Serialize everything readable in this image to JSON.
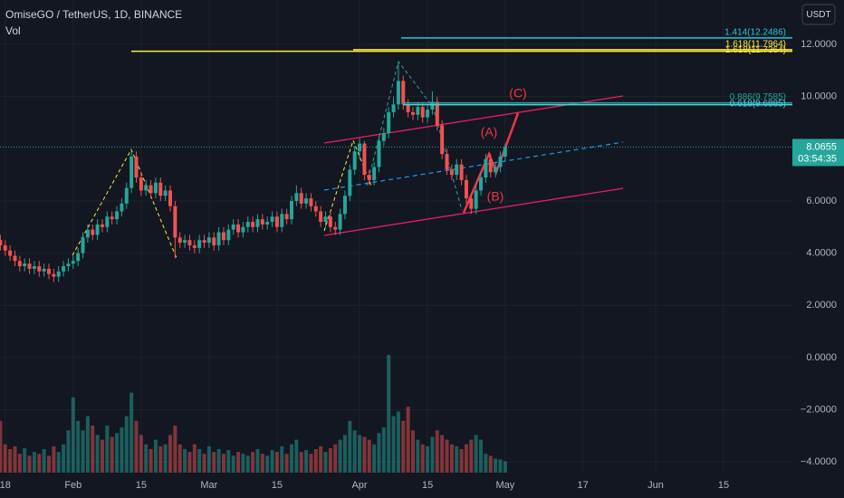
{
  "chart_data": {
    "type": "candlestick",
    "title": "OmiseGO / TetherUS, 1D, BINANCE",
    "volume_label": "Vol",
    "currency": "USDT",
    "countdown": "03:54:35",
    "up_color": "#26a69a",
    "down_color": "#ef5350",
    "x": [
      "01-17",
      "01-18",
      "01-19",
      "01-20",
      "01-21",
      "01-22",
      "01-23",
      "01-24",
      "01-25",
      "01-26",
      "01-27",
      "01-28",
      "01-29",
      "01-30",
      "01-31",
      "02-01",
      "02-02",
      "02-03",
      "02-04",
      "02-05",
      "02-06",
      "02-07",
      "02-08",
      "02-09",
      "02-10",
      "02-11",
      "02-12",
      "02-13",
      "02-14",
      "02-15",
      "02-16",
      "02-17",
      "02-18",
      "02-19",
      "02-20",
      "02-21",
      "02-22",
      "02-23",
      "02-24",
      "02-25",
      "02-26",
      "02-27",
      "02-28",
      "03-01",
      "03-02",
      "03-03",
      "03-04",
      "03-05",
      "03-06",
      "03-07",
      "03-08",
      "03-09",
      "03-10",
      "03-11",
      "03-12",
      "03-13",
      "03-14",
      "03-15",
      "03-16",
      "03-17",
      "03-18",
      "03-19",
      "03-20",
      "03-21",
      "03-22",
      "03-23",
      "03-24",
      "03-25",
      "03-26",
      "03-27",
      "03-28",
      "03-29",
      "03-30",
      "03-31",
      "04-01",
      "04-02",
      "04-03",
      "04-04",
      "04-05",
      "04-06",
      "04-07",
      "04-08",
      "04-09",
      "04-10",
      "04-11",
      "04-12",
      "04-13",
      "04-14",
      "04-15",
      "04-16",
      "04-17",
      "04-18",
      "04-19",
      "04-20",
      "04-21",
      "04-22",
      "04-23",
      "04-24",
      "04-25",
      "04-26",
      "04-27",
      "04-28",
      "04-29",
      "04-30",
      "05-01"
    ],
    "open": [
      4.5,
      4.3,
      4.1,
      3.9,
      3.7,
      3.5,
      3.6,
      3.4,
      3.5,
      3.3,
      3.4,
      3.2,
      3.1,
      3.3,
      3.5,
      3.6,
      3.7,
      4.0,
      4.6,
      4.9,
      4.7,
      5.1,
      5.0,
      5.4,
      5.3,
      5.6,
      5.9,
      6.5,
      7.7,
      6.9,
      6.4,
      6.6,
      6.3,
      6.7,
      6.2,
      6.4,
      5.8,
      4.6,
      4.4,
      4.5,
      4.3,
      4.2,
      4.5,
      4.4,
      4.6,
      4.3,
      4.8,
      4.5,
      4.9,
      5.1,
      4.8,
      5.0,
      5.2,
      5.0,
      5.3,
      5.1,
      5.2,
      5.4,
      5.0,
      5.5,
      5.3,
      6.0,
      6.3,
      5.9,
      6.1,
      5.8,
      5.6,
      5.2,
      5.4,
      5.0,
      4.9,
      5.5,
      6.2,
      7.2,
      7.9,
      8.2,
      7.0,
      6.8,
      7.3,
      8.3,
      8.6,
      9.4,
      9.7,
      10.6,
      9.7,
      9.4,
      9.3,
      9.6,
      9.2,
      9.5,
      9.8,
      8.9,
      7.8,
      7.2,
      7.0,
      7.4,
      6.8,
      6.1,
      5.7,
      6.4,
      6.9,
      7.6,
      7.1,
      7.3,
      7.7
    ],
    "high": [
      4.7,
      4.5,
      4.3,
      4.1,
      3.9,
      3.8,
      3.8,
      3.7,
      3.7,
      3.6,
      3.6,
      3.4,
      3.5,
      3.7,
      3.8,
      3.9,
      4.2,
      4.8,
      5.1,
      5.1,
      5.3,
      5.3,
      5.6,
      5.6,
      5.8,
      6.1,
      6.7,
      8.0,
      7.9,
      7.1,
      6.8,
      6.8,
      6.9,
      6.9,
      6.6,
      6.6,
      6.0,
      4.8,
      4.7,
      4.7,
      4.5,
      4.7,
      4.7,
      4.8,
      4.8,
      5.0,
      5.0,
      5.1,
      5.3,
      5.3,
      5.2,
      5.4,
      5.4,
      5.5,
      5.5,
      5.4,
      5.6,
      5.6,
      5.7,
      5.7,
      6.2,
      6.6,
      6.5,
      6.3,
      6.3,
      6.0,
      5.8,
      5.6,
      5.6,
      5.2,
      5.7,
      6.4,
      7.4,
      8.1,
      8.4,
      8.3,
      7.2,
      7.5,
      8.5,
      8.8,
      9.6,
      10.0,
      11.3,
      10.8,
      9.9,
      9.6,
      9.8,
      9.8,
      9.7,
      10.2,
      10.0,
      9.1,
      8.0,
      7.4,
      7.6,
      7.6,
      7.0,
      6.3,
      6.6,
      7.1,
      7.8,
      7.8,
      7.5,
      7.9,
      8.2
    ],
    "low": [
      4.1,
      3.9,
      3.7,
      3.5,
      3.3,
      3.3,
      3.2,
      3.2,
      3.1,
      3.1,
      3.0,
      2.9,
      2.9,
      3.1,
      3.3,
      3.4,
      3.5,
      3.8,
      4.4,
      4.5,
      4.5,
      4.8,
      4.8,
      5.1,
      5.1,
      5.4,
      5.7,
      6.3,
      6.7,
      6.2,
      6.2,
      6.1,
      6.1,
      6.0,
      6.0,
      5.6,
      3.8,
      4.2,
      4.2,
      4.1,
      4.0,
      4.0,
      4.2,
      4.2,
      4.1,
      4.1,
      4.3,
      4.3,
      4.7,
      4.6,
      4.6,
      4.8,
      4.8,
      4.8,
      4.9,
      4.9,
      5.0,
      4.8,
      4.8,
      5.1,
      5.1,
      5.8,
      5.7,
      5.7,
      5.6,
      5.4,
      5.0,
      5.0,
      4.8,
      4.7,
      4.7,
      5.3,
      6.0,
      7.0,
      7.6,
      6.8,
      6.6,
      6.6,
      7.1,
      8.1,
      8.4,
      9.2,
      9.5,
      9.5,
      9.2,
      9.1,
      9.1,
      9.0,
      9.0,
      9.3,
      8.7,
      7.6,
      7.0,
      6.8,
      6.8,
      6.6,
      5.9,
      5.5,
      5.5,
      6.2,
      6.7,
      6.9,
      6.9,
      7.1,
      7.5
    ],
    "close": [
      4.3,
      4.1,
      3.9,
      3.7,
      3.5,
      3.6,
      3.4,
      3.5,
      3.3,
      3.4,
      3.2,
      3.1,
      3.3,
      3.5,
      3.6,
      3.7,
      4.0,
      4.6,
      4.9,
      4.7,
      5.1,
      5.0,
      5.4,
      5.3,
      5.6,
      5.9,
      6.5,
      7.7,
      6.9,
      6.4,
      6.6,
      6.3,
      6.7,
      6.2,
      6.4,
      5.8,
      4.6,
      4.4,
      4.5,
      4.3,
      4.2,
      4.5,
      4.4,
      4.6,
      4.3,
      4.8,
      4.5,
      4.9,
      5.1,
      4.8,
      5.0,
      5.2,
      5.0,
      5.3,
      5.1,
      5.2,
      5.4,
      5.0,
      5.5,
      5.3,
      6.0,
      6.3,
      5.9,
      6.1,
      5.8,
      5.6,
      5.2,
      5.4,
      5.0,
      4.9,
      5.5,
      6.2,
      7.2,
      7.9,
      8.2,
      7.0,
      6.8,
      7.3,
      8.3,
      8.6,
      9.4,
      9.7,
      10.6,
      9.7,
      9.4,
      9.3,
      9.6,
      9.2,
      9.5,
      9.8,
      8.9,
      7.8,
      7.2,
      7.0,
      7.4,
      6.8,
      6.1,
      5.7,
      6.4,
      6.9,
      7.6,
      7.1,
      7.3,
      7.7,
      8.0655
    ],
    "volume": [
      55,
      30,
      25,
      28,
      20,
      26,
      18,
      22,
      20,
      25,
      18,
      28,
      22,
      30,
      45,
      80,
      55,
      45,
      60,
      50,
      40,
      35,
      50,
      38,
      42,
      48,
      60,
      85,
      55,
      40,
      30,
      25,
      35,
      28,
      30,
      40,
      50,
      30,
      25,
      22,
      30,
      25,
      20,
      28,
      22,
      25,
      20,
      24,
      18,
      22,
      20,
      18,
      22,
      25,
      20,
      18,
      24,
      22,
      28,
      20,
      30,
      35,
      22,
      24,
      20,
      25,
      28,
      22,
      26,
      30,
      35,
      40,
      55,
      45,
      40,
      38,
      35,
      30,
      42,
      48,
      125,
      60,
      65,
      55,
      70,
      45,
      35,
      30,
      28,
      38,
      45,
      40,
      35,
      30,
      28,
      25,
      30,
      35,
      40,
      35,
      20,
      18,
      15,
      14,
      12
    ],
    "ylim": [
      -4.41,
      13.7
    ],
    "yticks": [
      {
        "value": 12,
        "label": "12.0000"
      },
      {
        "value": 10,
        "label": "10.0000"
      },
      {
        "value": 6,
        "label": "6.0000"
      },
      {
        "value": 4,
        "label": "4.0000"
      },
      {
        "value": 2,
        "label": "2.0000"
      },
      {
        "value": 0,
        "label": "0.0000"
      },
      {
        "value": -2,
        "label": "−2.0000"
      },
      {
        "value": -4,
        "label": "−4.0000"
      }
    ],
    "xticks": [
      {
        "value": "01-18",
        "label": "18"
      },
      {
        "value": "02-01",
        "label": "Feb"
      },
      {
        "value": "02-15",
        "label": "15"
      },
      {
        "value": "03-01",
        "label": "Mar"
      },
      {
        "value": "03-15",
        "label": "15"
      },
      {
        "value": "04-01",
        "label": "Apr"
      },
      {
        "value": "04-15",
        "label": "15"
      },
      {
        "value": "05-01",
        "label": "May"
      },
      {
        "value": "05-17",
        "label": "17"
      },
      {
        "value": "06-01",
        "label": "Jun"
      },
      {
        "value": "06-15",
        "label": "15"
      }
    ],
    "fib_levels": [
      {
        "label": "1.414(12.2486)",
        "value": 12.2486,
        "color": "#26c6da"
      },
      {
        "label": "1.618(11.7964)",
        "value": 11.7964,
        "color": "#ffeb3b"
      },
      {
        "label": "1.618(11.7364)",
        "value": 11.7364,
        "color": "#ffeb3b"
      },
      {
        "label": "0.886(9.7585)",
        "value": 9.7585,
        "color": "#26a69a"
      },
      {
        "label": "0.618(9.6885)",
        "value": 9.6885,
        "color": "#4dd0e1"
      }
    ],
    "wave_labels": [
      "(A)",
      "(B)",
      "(C)"
    ]
  }
}
